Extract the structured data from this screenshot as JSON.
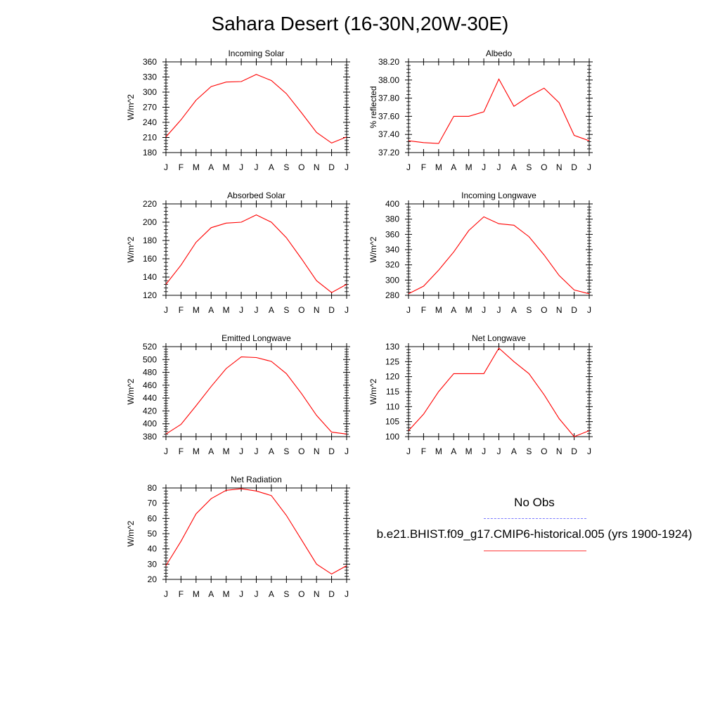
{
  "title": "Sahara Desert (16-30N,20W-30E)",
  "months": [
    "J",
    "F",
    "M",
    "A",
    "M",
    "J",
    "J",
    "A",
    "S",
    "O",
    "N",
    "D",
    "J"
  ],
  "legend": {
    "obs_label": "No Obs",
    "obs_color": "#7a7aff",
    "model_label": "b.e21.BHIST.f09_g17.CMIP6-historical.005 (yrs 1900-1924)",
    "model_color": "#ff0000"
  },
  "chart_data": [
    {
      "type": "line",
      "title": "Incoming Solar",
      "ylabel": "W/m^2",
      "ylim": [
        180,
        360
      ],
      "yticks": [
        180,
        210,
        240,
        270,
        300,
        330,
        360
      ],
      "ytick_labels": [
        "180",
        "210",
        "240",
        "270",
        "300",
        "330",
        "360"
      ],
      "series": [
        {
          "values": [
            211,
            245,
            284,
            311,
            320,
            321,
            335,
            323,
            297,
            259,
            220,
            199,
            211
          ]
        }
      ]
    },
    {
      "type": "line",
      "title": "Albedo",
      "ylabel": "% reflected",
      "ylim": [
        37.2,
        38.2
      ],
      "yticks": [
        37.2,
        37.4,
        37.6,
        37.8,
        38.0,
        38.2
      ],
      "ytick_labels": [
        "37.20",
        "37.40",
        "37.60",
        "37.80",
        "38.00",
        "38.20"
      ],
      "series": [
        {
          "values": [
            37.33,
            37.31,
            37.3,
            37.6,
            37.6,
            37.65,
            38.01,
            37.71,
            37.82,
            37.91,
            37.75,
            37.39,
            37.33
          ]
        }
      ]
    },
    {
      "type": "line",
      "title": "Absorbed Solar",
      "ylabel": "W/m^2",
      "ylim": [
        120,
        220
      ],
      "yticks": [
        120,
        140,
        160,
        180,
        200,
        220
      ],
      "ytick_labels": [
        "120",
        "140",
        "160",
        "180",
        "200",
        "220"
      ],
      "series": [
        {
          "values": [
            132,
            153,
            178,
            194,
            199,
            200,
            208,
            200,
            183,
            160,
            136,
            123,
            132
          ]
        }
      ]
    },
    {
      "type": "line",
      "title": "Incoming Longwave",
      "ylabel": "W/m^2",
      "ylim": [
        280,
        400
      ],
      "yticks": [
        280,
        300,
        320,
        340,
        360,
        380,
        400
      ],
      "ytick_labels": [
        "280",
        "300",
        "320",
        "340",
        "360",
        "380",
        "400"
      ],
      "series": [
        {
          "values": [
            282,
            292,
            313,
            337,
            365,
            383,
            374,
            372,
            357,
            333,
            306,
            287,
            282
          ]
        }
      ]
    },
    {
      "type": "line",
      "title": "Emitted Longwave",
      "ylabel": "W/m^2",
      "ylim": [
        380,
        520
      ],
      "yticks": [
        380,
        400,
        420,
        440,
        460,
        480,
        500,
        520
      ],
      "ytick_labels": [
        "380",
        "400",
        "420",
        "440",
        "460",
        "480",
        "500",
        "520"
      ],
      "series": [
        {
          "values": [
            384,
            399,
            428,
            458,
            486,
            504,
            503,
            497,
            478,
            447,
            413,
            387,
            384
          ]
        }
      ]
    },
    {
      "type": "line",
      "title": "Net Longwave",
      "ylabel": "W/m^2",
      "ylim": [
        100,
        130
      ],
      "yticks": [
        100,
        105,
        110,
        115,
        120,
        125,
        130
      ],
      "ytick_labels": [
        "100",
        "105",
        "110",
        "115",
        "120",
        "125",
        "130"
      ],
      "series": [
        {
          "values": [
            102,
            107.5,
            115,
            121,
            121,
            121,
            129.5,
            125,
            121,
            114,
            106,
            100,
            102
          ]
        }
      ]
    },
    {
      "type": "line",
      "title": "Net Radiation",
      "ylabel": "W/m^2",
      "ylim": [
        20,
        80
      ],
      "yticks": [
        20,
        30,
        40,
        50,
        60,
        70,
        80
      ],
      "ytick_labels": [
        "20",
        "30",
        "40",
        "50",
        "60",
        "70",
        "80"
      ],
      "series": [
        {
          "values": [
            29,
            45,
            63,
            73,
            78.5,
            79.5,
            78,
            75,
            62,
            46,
            30,
            23.5,
            29
          ]
        }
      ]
    }
  ]
}
